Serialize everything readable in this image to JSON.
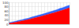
{
  "chart_data": {
    "type": "area",
    "stacked": true,
    "grid": true,
    "tick_labels": "y",
    "categories": [
      null,
      null,
      null,
      null,
      null,
      null,
      null,
      null,
      null,
      null,
      null,
      null,
      null,
      null,
      null,
      null,
      null,
      null,
      null,
      null
    ],
    "series": [
      {
        "color": "#ff0000",
        "values": [
          4,
          6,
          9,
          12,
          15,
          18,
          21,
          25,
          29,
          32,
          36,
          40,
          44,
          48,
          52,
          56,
          61,
          65,
          70,
          75
        ]
      },
      {
        "color": "#3366ff",
        "values": [
          3,
          4,
          4,
          5,
          5,
          6,
          6,
          7,
          7,
          8,
          8,
          8,
          9,
          9,
          10,
          10,
          11,
          11,
          12,
          12
        ]
      }
    ],
    "ylim": [
      0,
      100
    ],
    "yticks": [
      0,
      20,
      40,
      60,
      80,
      100
    ]
  }
}
